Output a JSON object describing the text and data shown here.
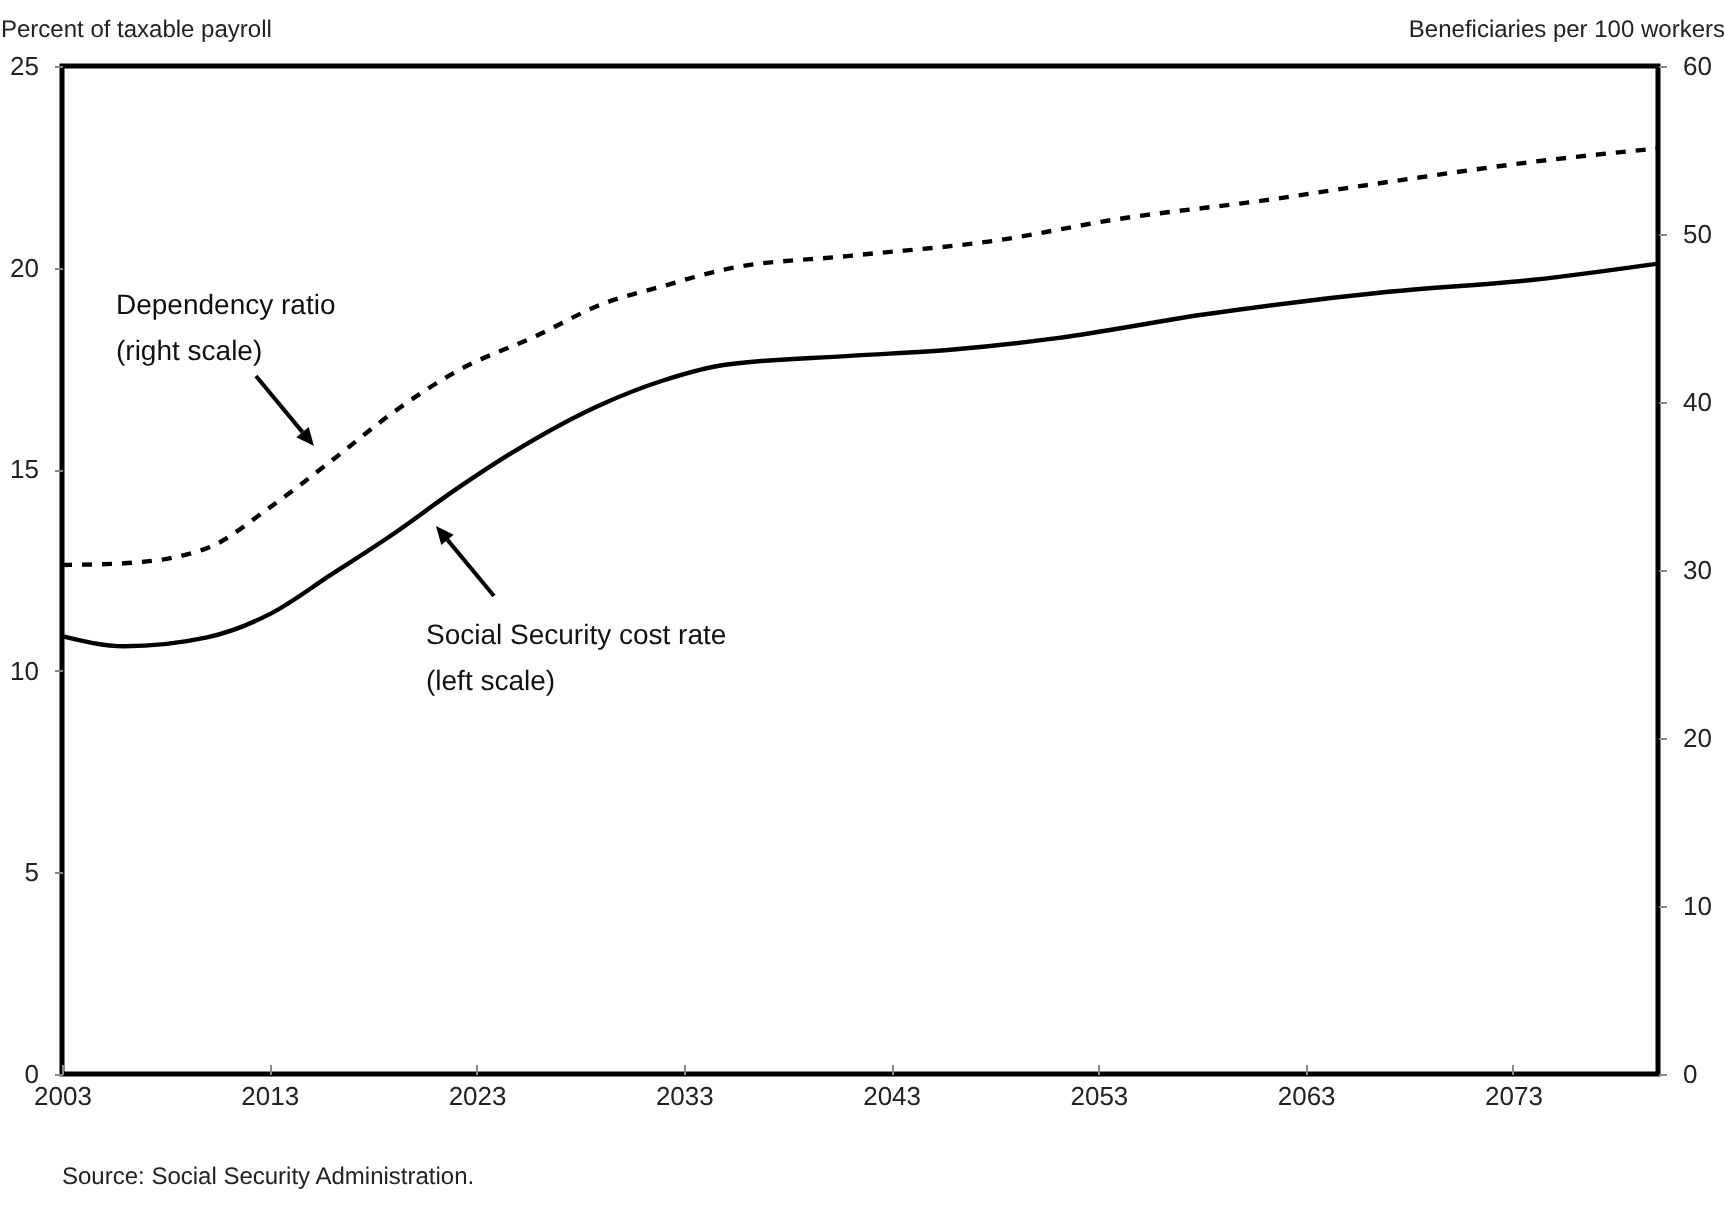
{
  "chart_data": {
    "type": "line",
    "ylabel": "Percent of taxable payroll",
    "y2label": "Beneficiaries per 100 workers",
    "xlim": [
      2003,
      2080
    ],
    "xticks": [
      2003,
      2013,
      2023,
      2033,
      2043,
      2053,
      2063,
      2073
    ],
    "ylim": [
      0,
      25
    ],
    "yticks": [
      0,
      5,
      10,
      15,
      20,
      25
    ],
    "y2lim": [
      0,
      60
    ],
    "y2ticks": [
      0,
      10,
      20,
      30,
      40,
      50,
      60
    ],
    "grid": false,
    "series": [
      {
        "color": "#000000",
        "line_style": "solid",
        "x": [
          2003,
          2006,
          2010,
          2013,
          2016,
          2019,
          2022,
          2025,
          2029,
          2032,
          2035,
          2041,
          2046,
          2051,
          2058,
          2067,
          2074,
          2080
        ],
        "values": [
          10.86,
          10.61,
          10.83,
          11.4,
          12.39,
          13.4,
          14.5,
          15.5,
          16.6,
          17.2,
          17.59,
          17.81,
          17.97,
          18.25,
          18.83,
          19.4,
          19.7,
          20.1
        ]
      },
      {
        "color": "#000000",
        "line_style": "dashed",
        "axis": "y2",
        "x": [
          2003,
          2006,
          2010,
          2013,
          2016,
          2019,
          2022,
          2026,
          2029,
          2032,
          2035,
          2041,
          2048,
          2054,
          2061,
          2067,
          2074,
          2080
        ],
        "values": [
          30.3,
          30.4,
          31.3,
          33.7,
          36.5,
          39.4,
          41.8,
          44.0,
          45.8,
          46.9,
          47.9,
          48.7,
          49.6,
          50.9,
          52.0,
          53.1,
          54.3,
          55.1
        ]
      }
    ],
    "annotations": [
      "Dependency ratio\n(right scale)",
      "Social Security cost rate\n(left scale)",
      "Source: Social Security Administration."
    ]
  }
}
